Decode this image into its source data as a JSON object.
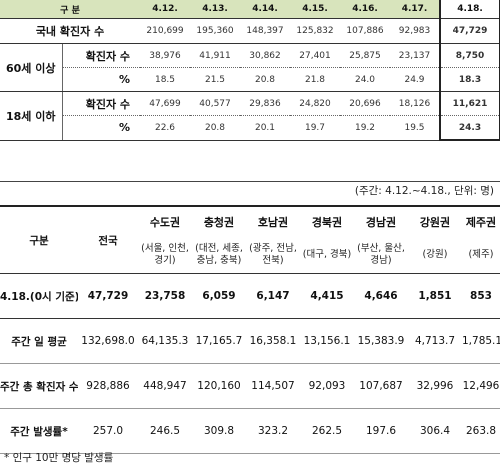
{
  "table1": {
    "header": {
      "category": "구 분",
      "dates": [
        "4.12.",
        "4.13.",
        "4.14.",
        "4.15.",
        "4.16.",
        "4.17.",
        "4.18."
      ]
    },
    "total_row": {
      "label": "국내 확진자 수",
      "values": [
        "210,699",
        "195,360",
        "148,397",
        "125,832",
        "107,886",
        "92,983",
        "47,729"
      ]
    },
    "group_60": {
      "label": "60세 이상",
      "count_label": "확진자 수",
      "count_values": [
        "38,976",
        "41,911",
        "30,862",
        "27,401",
        "25,875",
        "23,137",
        "8,750"
      ],
      "pct_label": "%",
      "pct_values": [
        "18.5",
        "21.5",
        "20.8",
        "21.8",
        "24.0",
        "24.9",
        "18.3"
      ]
    },
    "group_18": {
      "label": "18세 이하",
      "count_label": "확진자 수",
      "count_values": [
        "47,699",
        "40,577",
        "29,836",
        "24,820",
        "20,696",
        "18,126",
        "11,621"
      ],
      "pct_label": "%",
      "pct_values": [
        "22.6",
        "20.8",
        "20.1",
        "19.7",
        "19.2",
        "19.5",
        "24.3"
      ]
    },
    "note": "(주간: 4.12.~4.18., 단위: 명)"
  },
  "table2": {
    "header": {
      "category": "구분",
      "national": "전국",
      "regions": [
        "수도권",
        "충청권",
        "호남권",
        "경북권",
        "경남권",
        "강원권",
        "제주권"
      ],
      "region_subs": [
        "(서울, 인천, 경기)",
        "(대전, 세종, 충남, 충북)",
        "(광주, 전남, 전북)",
        "(대구, 경북)",
        "(부산, 울산, 경남)",
        "(강원)",
        "(제주)"
      ]
    },
    "rows": [
      {
        "label": "4.18.(0시 기준)",
        "national": "47,729",
        "values": [
          "23,758",
          "6,059",
          "6,147",
          "4,415",
          "4,646",
          "1,851",
          "853"
        ]
      },
      {
        "label": "주간 일 평균",
        "national": "132,698.0",
        "values": [
          "64,135.3",
          "17,165.7",
          "16,358.1",
          "13,156.1",
          "15,383.9",
          "4,713.7",
          "1,785.1"
        ]
      },
      {
        "label": "주간 총 확진자 수",
        "national": "928,886",
        "values": [
          "448,947",
          "120,160",
          "114,507",
          "92,093",
          "107,687",
          "32,996",
          "12,496"
        ]
      },
      {
        "label": "주간 발생률*",
        "national": "257.0",
        "values": [
          "246.5",
          "309.8",
          "323.2",
          "262.5",
          "197.6",
          "306.4",
          "263.8"
        ]
      }
    ],
    "footnote": "* 인구 10만 명당 발생률"
  }
}
